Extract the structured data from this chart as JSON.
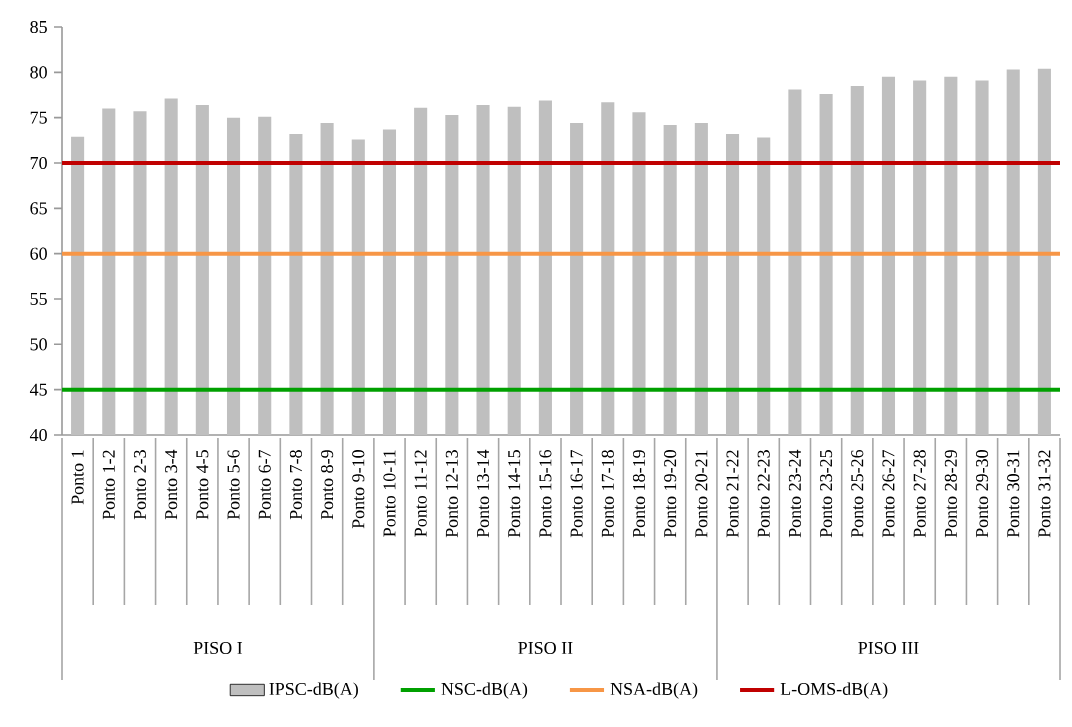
{
  "chart_data": {
    "type": "bar",
    "categories": [
      "Ponto 1",
      "Ponto 1-2",
      "Ponto 2-3",
      "Ponto 3-4",
      "Ponto 4-5",
      "Ponto 5-6",
      "Ponto 6-7",
      "Ponto 7-8",
      "Ponto 8-9",
      "Ponto 9-10",
      "Ponto 10-11",
      "Ponto 11-12",
      "Ponto 12-13",
      "Ponto 13-14",
      "Ponto 14-15",
      "Ponto 15-16",
      "Ponto 16-17",
      "Ponto 17-18",
      "Ponto 18-19",
      "Ponto 19-20",
      "Ponto 20-21",
      "Ponto 21-22",
      "Ponto 22-23",
      "Ponto 23-24",
      "Ponto 23-25",
      "Ponto 25-26",
      "Ponto 26-27",
      "Ponto 27-28",
      "Ponto 28-29",
      "Ponto 29-30",
      "Ponto 30-31",
      "Ponto 31-32"
    ],
    "series": [
      {
        "name": "IPSC-dB(A)",
        "color": "#bfbfbf",
        "values": [
          72.9,
          76.0,
          75.7,
          77.1,
          76.4,
          75.0,
          75.1,
          73.2,
          74.4,
          72.6,
          73.7,
          76.1,
          75.3,
          76.4,
          76.2,
          76.9,
          74.4,
          76.7,
          75.6,
          74.2,
          74.4,
          73.2,
          72.8,
          78.1,
          77.6,
          78.5,
          79.5,
          79.1,
          79.5,
          79.1,
          80.3,
          80.4
        ]
      }
    ],
    "ref_lines": [
      {
        "axis": "y",
        "value": 45,
        "label": "NSC-dB(A)",
        "color": "#00a000"
      },
      {
        "axis": "y",
        "value": 60,
        "label": "NSA-dB(A)",
        "color": "#f79646"
      },
      {
        "axis": "y",
        "value": 70,
        "label": "L-OMS-dB(A)",
        "color": "#c00000"
      }
    ],
    "annotations": [
      "PISO I",
      "PISO II",
      "PISO III"
    ],
    "ylim": [
      40,
      85
    ],
    "yticks": [
      40,
      45,
      50,
      55,
      60,
      65,
      70,
      75,
      80,
      85
    ],
    "grid": false,
    "legend": "bottom"
  }
}
